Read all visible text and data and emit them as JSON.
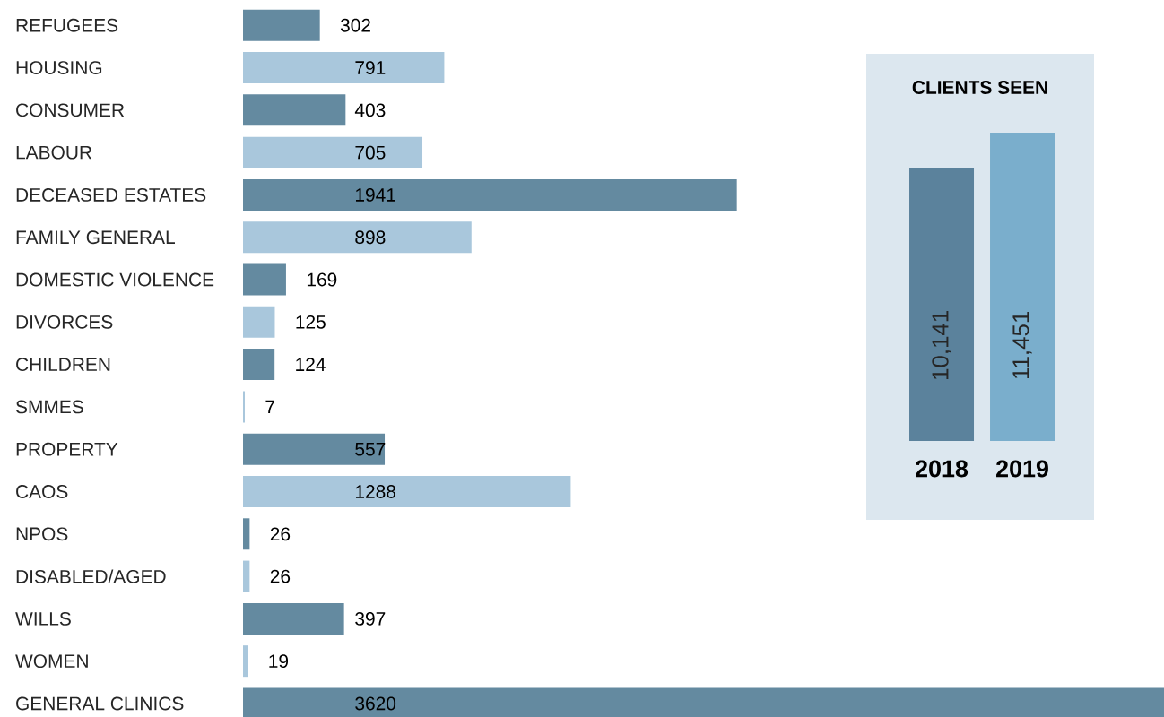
{
  "chart_data": [
    {
      "type": "bar",
      "orientation": "horizontal",
      "categories": [
        "REFUGEES",
        "HOUSING",
        "CONSUMER",
        "LABOUR",
        "DECEASED ESTATES",
        "FAMILY GENERAL",
        "DOMESTIC VIOLENCE",
        "DIVORCES",
        "CHILDREN",
        "SMMES",
        "PROPERTY",
        "CAOS",
        "NPOS",
        "DISABLED/AGED",
        "WILLS",
        "WOMEN",
        "GENERAL CLINICS"
      ],
      "values": [
        302,
        791,
        403,
        705,
        1941,
        898,
        169,
        125,
        124,
        7,
        557,
        1288,
        26,
        26,
        397,
        19,
        3620
      ],
      "colors": [
        "#648aa0",
        "#a9c7dc",
        "#648aa0",
        "#a9c7dc",
        "#648aa0",
        "#a9c7dc",
        "#648aa0",
        "#a9c7dc",
        "#648aa0",
        "#a9c7dc",
        "#648aa0",
        "#a9c7dc",
        "#648aa0",
        "#a9c7dc",
        "#648aa0",
        "#a9c7dc",
        "#648aa0"
      ],
      "data_labels": true
    },
    {
      "type": "bar",
      "title": "CLIENTS SEEN",
      "categories": [
        "2018",
        "2019"
      ],
      "values": [
        10141,
        11451
      ],
      "value_labels": [
        "10,141",
        "11,451"
      ],
      "colors": [
        "#5b829c",
        "#7aaecc"
      ]
    }
  ]
}
